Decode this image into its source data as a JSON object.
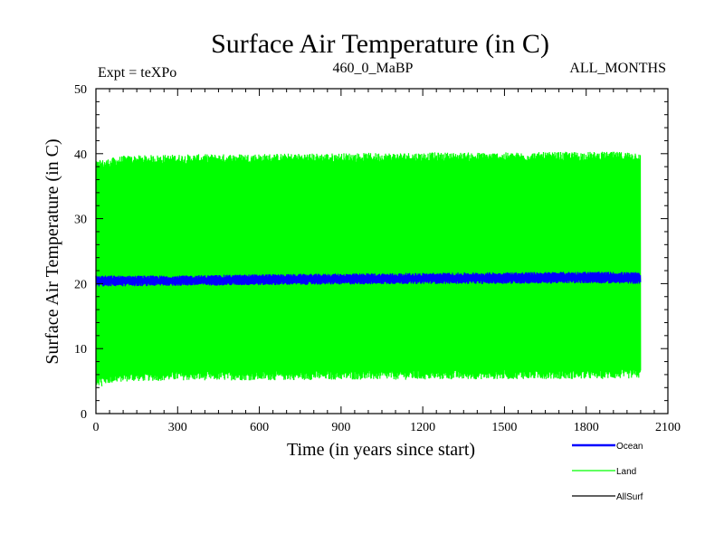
{
  "colors": {
    "ocean": "#0000ff",
    "land": "#00ff00",
    "allsurf": "#000000",
    "axis": "#000000",
    "background": "#ffffff"
  },
  "chart_data": {
    "type": "line",
    "title": "Surface Air Temperature (in C)",
    "subtitle_left": "Expt = teXPo",
    "subtitle_center": "460_0_MaBP",
    "subtitle_right": "ALL_MONTHS",
    "xlabel": "Time (in years since start)",
    "ylabel": "Surface Air Temperature (in C)",
    "xlim": [
      0,
      2100
    ],
    "ylim": [
      0,
      50
    ],
    "xticks": [
      0,
      300,
      600,
      900,
      1200,
      1500,
      1800,
      2100
    ],
    "xtick_labels": [
      "0",
      "300",
      "600",
      "900",
      "1200",
      "1500",
      "1800",
      "2100"
    ],
    "yticks": [
      0,
      10,
      20,
      30,
      40,
      50
    ],
    "ytick_labels": [
      "0",
      "10",
      "20",
      "30",
      "40",
      "50"
    ],
    "grid": false,
    "legend_position": "bottom-right, below plot",
    "series": [
      {
        "name": "Land",
        "color": "#00ff00",
        "style": "monthly oscillation band",
        "x_range": [
          0,
          2000
        ],
        "envelope_x": [
          0,
          100,
          300,
          600,
          900,
          1200,
          1500,
          1800,
          2000
        ],
        "envelope_max": [
          38.2,
          39.0,
          39.2,
          39.3,
          39.4,
          39.5,
          39.5,
          39.6,
          39.6
        ],
        "envelope_min": [
          5.0,
          5.6,
          5.8,
          5.8,
          5.9,
          5.9,
          6.0,
          6.0,
          6.1
        ],
        "peak_max": 40.0,
        "trough_min": 4.2
      },
      {
        "name": "Ocean",
        "color": "#0000ff",
        "style": "monthly oscillation band",
        "x_range": [
          0,
          2000
        ],
        "envelope_x": [
          0,
          300,
          600,
          900,
          1200,
          1500,
          1800,
          2000
        ],
        "envelope_max": [
          21.0,
          21.0,
          21.2,
          21.3,
          21.4,
          21.5,
          21.6,
          21.5
        ],
        "envelope_min": [
          19.8,
          19.9,
          20.0,
          20.1,
          20.2,
          20.2,
          20.3,
          20.2
        ]
      },
      {
        "name": "AllSurf",
        "color": "#000000",
        "style": "line",
        "x_range": [
          0,
          2000
        ],
        "note": "hidden beneath Land and Ocean bands"
      }
    ],
    "legend": [
      {
        "name": "Ocean",
        "color": "#0000ff"
      },
      {
        "name": "Land",
        "color": "#00ff00"
      },
      {
        "name": "AllSurf",
        "color": "#000000"
      }
    ]
  }
}
